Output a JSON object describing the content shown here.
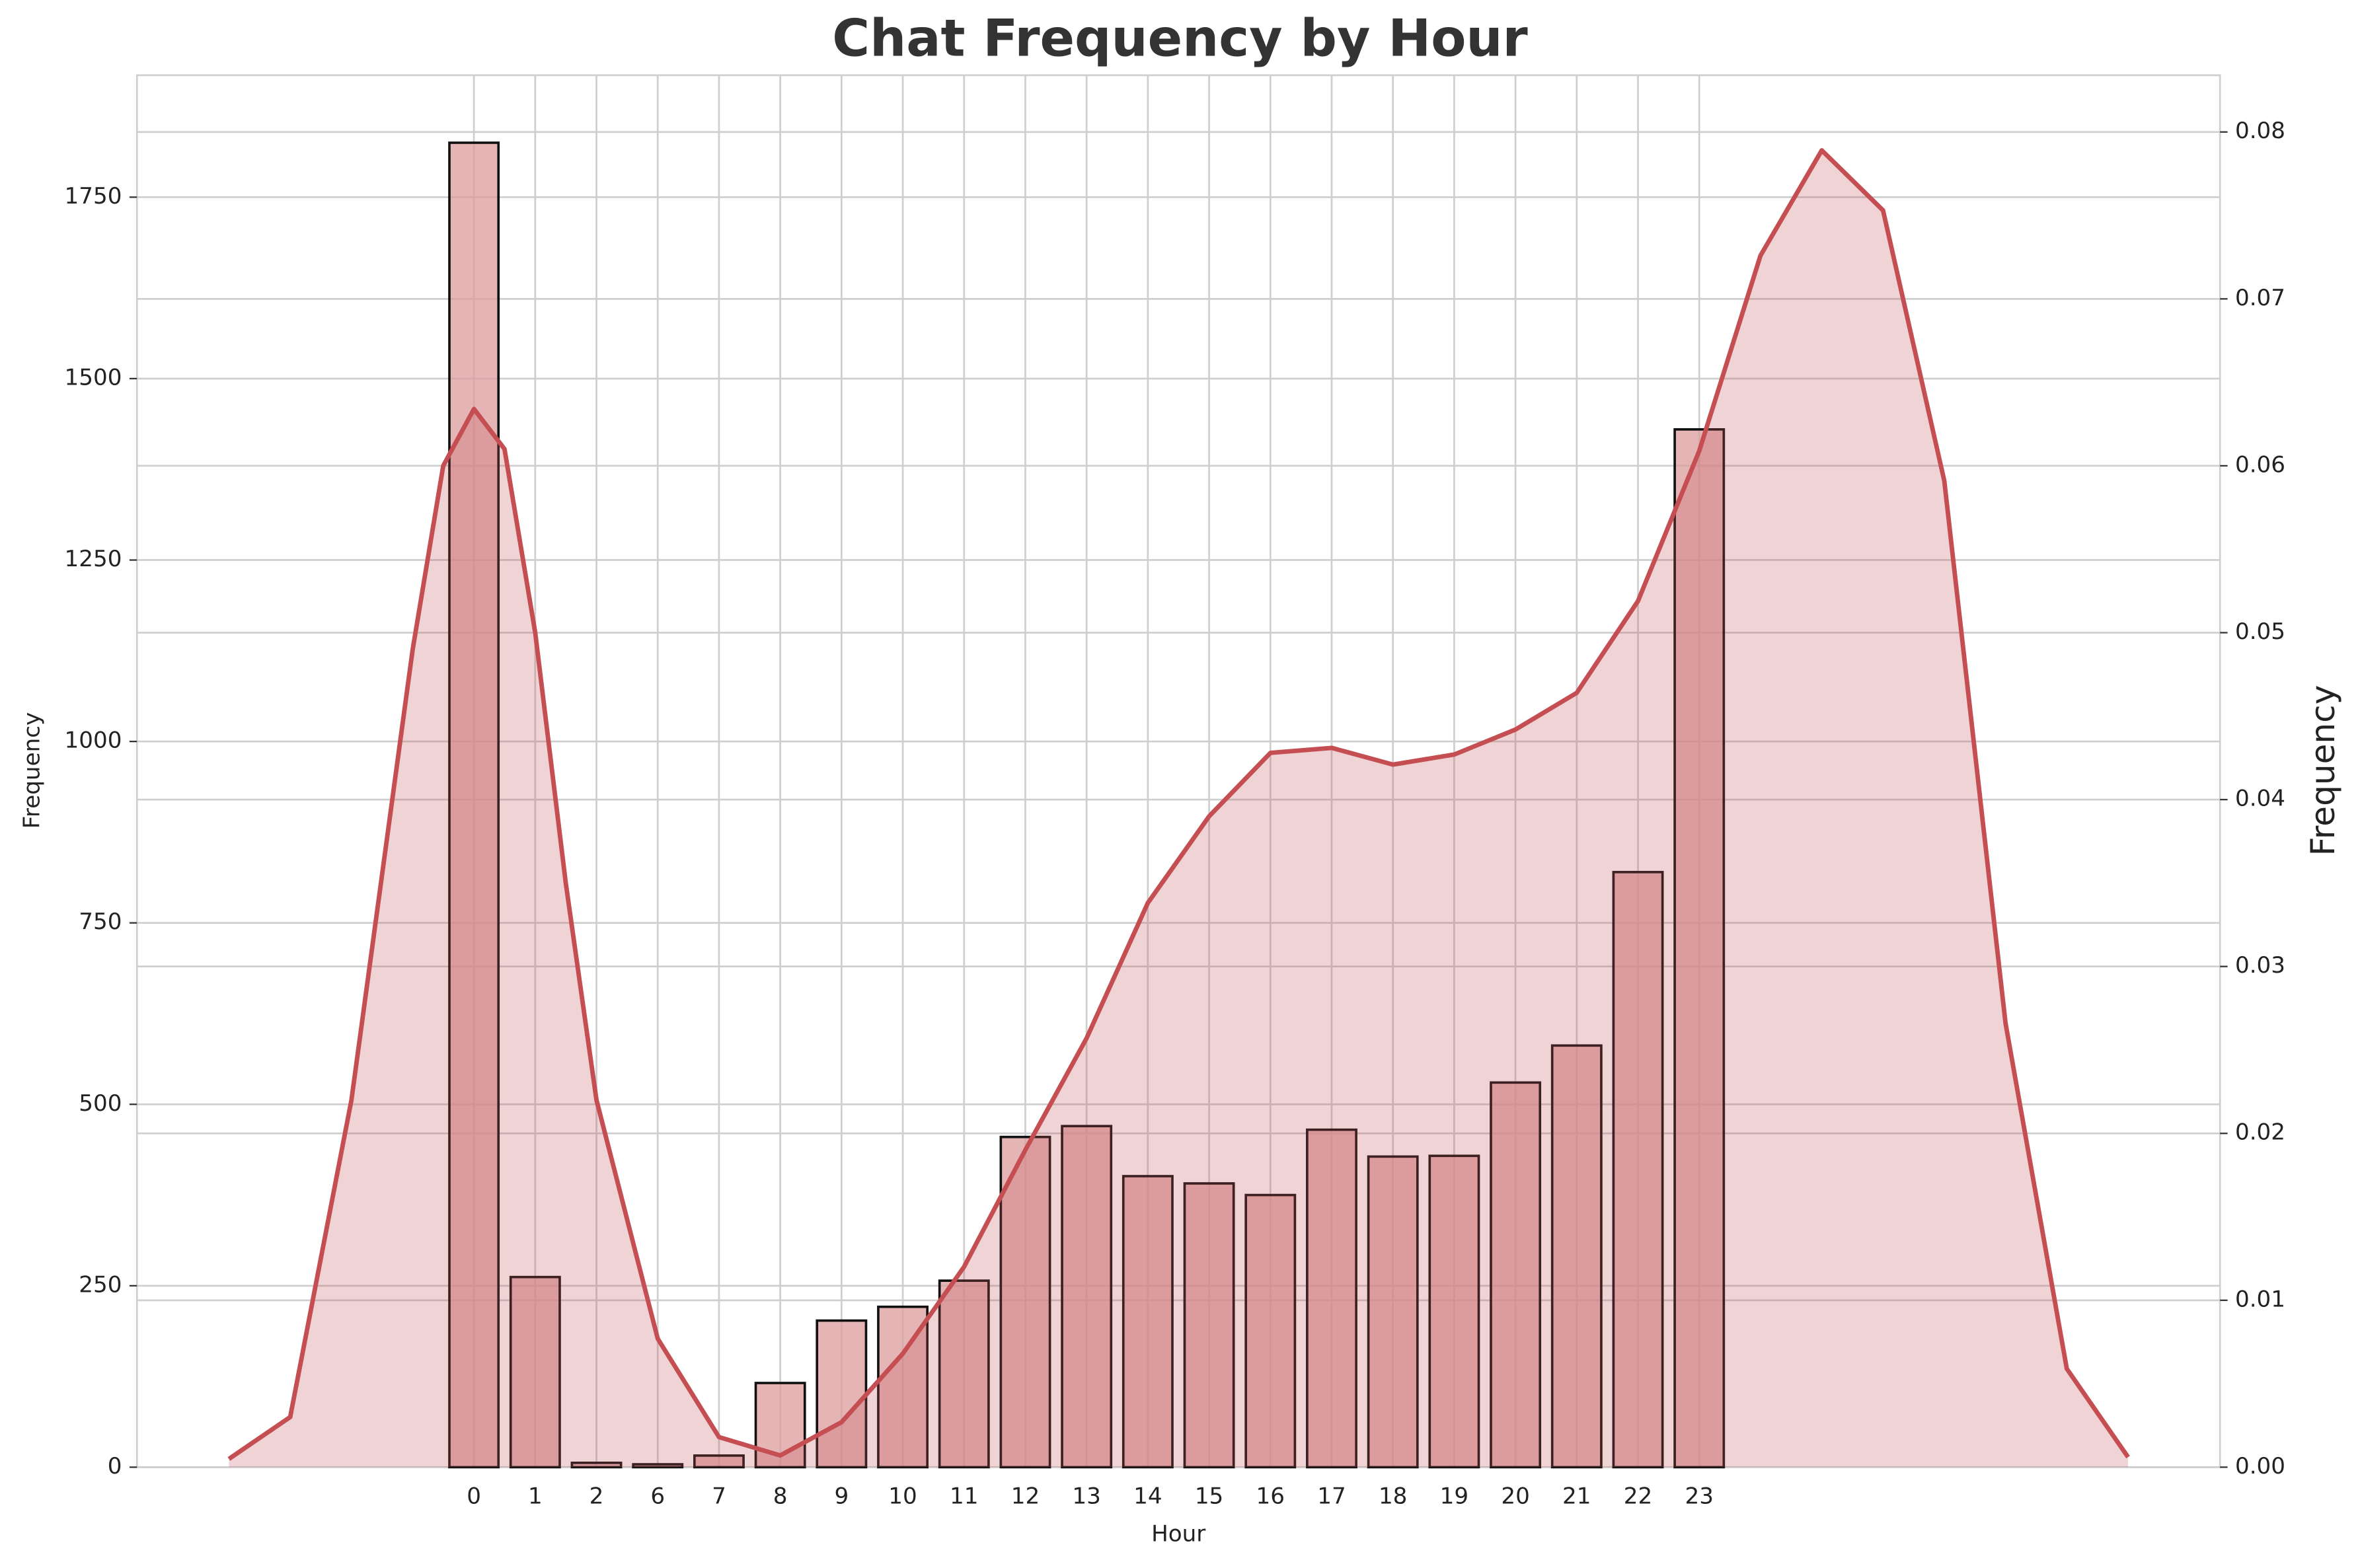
{
  "chart_data": {
    "type": "bar",
    "title": "Chat Frequency by Hour",
    "xlabel": "Hour",
    "ylabel": "Frequency",
    "y2label": "Frequency",
    "categories": [
      "0",
      "1",
      "2",
      "6",
      "7",
      "8",
      "9",
      "10",
      "11",
      "12",
      "13",
      "14",
      "15",
      "16",
      "17",
      "18",
      "19",
      "20",
      "21",
      "22",
      "23"
    ],
    "values": [
      1825,
      262,
      6,
      4,
      16,
      116,
      202,
      221,
      257,
      455,
      470,
      401,
      391,
      375,
      465,
      428,
      429,
      530,
      581,
      820,
      1430
    ],
    "color": "#dc9c9e",
    "edgecolor": "#111111",
    "xlim": [
      -5.5,
      28.5
    ],
    "ylim": [
      0,
      1918
    ],
    "yticks": [
      0,
      250,
      500,
      750,
      1000,
      1250,
      1500,
      1750
    ],
    "y2lim": [
      0,
      0.0834
    ],
    "y2ticks": [
      {
        "value": 0,
        "label": "0.00"
      },
      {
        "value": 0.01,
        "label": "0.01"
      },
      {
        "value": 0.02,
        "label": "0.02"
      },
      {
        "value": 0.03,
        "label": "0.03"
      },
      {
        "value": 0.04,
        "label": "0.04"
      },
      {
        "value": 0.05,
        "label": "0.05"
      },
      {
        "value": 0.06,
        "label": "0.06"
      },
      {
        "value": 0.07,
        "label": "0.07"
      },
      {
        "value": 0.08,
        "label": "0.08"
      }
    ],
    "grid": true,
    "kde": {
      "type": "line",
      "axis": "y2",
      "color": "#c44e52",
      "x": [
        -4,
        -3,
        -2,
        -1,
        -0.5,
        0,
        0.5,
        1,
        1.5,
        2,
        3,
        4,
        5,
        6,
        7,
        8,
        9,
        10,
        11,
        12,
        13,
        14,
        15,
        16,
        17,
        18,
        19,
        20,
        21,
        22,
        23,
        24,
        25,
        26,
        27
      ],
      "values": [
        0.0005,
        0.003,
        0.022,
        0.049,
        0.06,
        0.0634,
        0.061,
        0.05,
        0.035,
        0.022,
        0.0077,
        0.0018,
        0.0007,
        0.0027,
        0.0068,
        0.012,
        0.019,
        0.0257,
        0.0338,
        0.039,
        0.0428,
        0.0431,
        0.0421,
        0.0427,
        0.0442,
        0.0464,
        0.0519,
        0.0609,
        0.0726,
        0.0789,
        0.0753,
        0.0591,
        0.0266,
        0.0059,
        0.0006
      ]
    }
  }
}
